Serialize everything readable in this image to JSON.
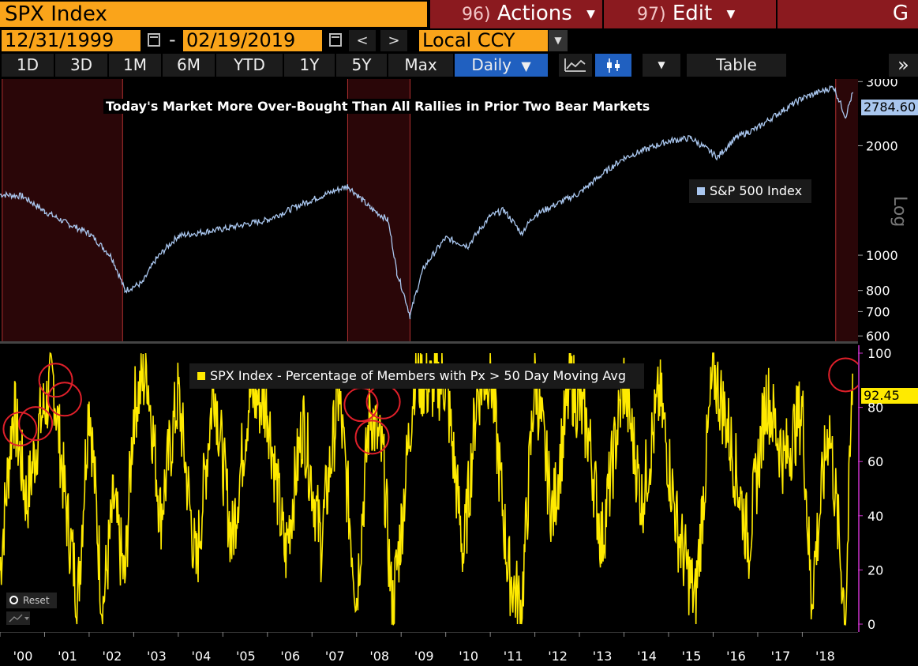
{
  "header": {
    "ticker": "SPX Index",
    "actions_num": "96)",
    "actions_label": "Actions",
    "edit_num": "97)",
    "edit_label": "Edit",
    "g_label": "G"
  },
  "range": {
    "start_date": "12/31/1999",
    "dash": "-",
    "end_date": "02/19/2019",
    "prev": "<",
    "next": ">",
    "currency": "Local CCY"
  },
  "tabs": [
    "1D",
    "3D",
    "1M",
    "6M",
    "YTD",
    "1Y",
    "5Y",
    "Max"
  ],
  "period": "Daily",
  "table_label": "Table",
  "more_label": "»",
  "upper_chart": {
    "title": "Today's Market More Over-Bought Than All Rallies in Prior Two Bear Markets",
    "legend": "S&P 500 Index",
    "last_value": "2784.60",
    "scale_label": "Log",
    "y_ticks": [
      "3000",
      "2000",
      "1000",
      "800",
      "700",
      "600"
    ]
  },
  "lower_chart": {
    "legend": "SPX Index - Percentage of Members with Px > 50 Day Moving Avg",
    "last_value": "92.45",
    "y_ticks": [
      "100",
      "80",
      "60",
      "40",
      "20",
      "0"
    ]
  },
  "x_ticks": [
    "'00",
    "'01",
    "'02",
    "'03",
    "'04",
    "'05",
    "'06",
    "'07",
    "'08",
    "'09",
    "'10",
    "'11",
    "'12",
    "'13",
    "'14",
    "'15",
    "'16",
    "'17",
    "'18"
  ],
  "reset_label": "Reset",
  "colors": {
    "orange": "#faa41a",
    "red_button": "#8b1a1f",
    "spx_line": "#a9c6ee",
    "breadth_line": "#ffea00",
    "circle": "#e0202a",
    "bear_shade": "#2a0608",
    "axis_magenta": "#cc33cc",
    "active_tab": "#2060c0"
  },
  "chart_data": [
    {
      "type": "line",
      "title": "Today's Market More Over-Bought Than All Rallies in Prior Two Bear Markets",
      "scale": "log",
      "ylim": [
        600,
        3000
      ],
      "series": [
        {
          "name": "S&P 500 Index",
          "x": [
            2000.0,
            2000.5,
            2001.0,
            2001.5,
            2002.0,
            2002.5,
            2002.8,
            2003.2,
            2003.5,
            2004.0,
            2005.0,
            2006.0,
            2007.0,
            2007.8,
            2008.3,
            2008.7,
            2008.9,
            2009.2,
            2009.5,
            2010.0,
            2010.5,
            2011.0,
            2011.3,
            2011.7,
            2012.0,
            2013.0,
            2014.0,
            2015.0,
            2015.5,
            2016.1,
            2016.5,
            2017.0,
            2018.0,
            2018.7,
            2018.97,
            2019.13
          ],
          "values": [
            1469,
            1454,
            1320,
            1224,
            1148,
            990,
            800,
            840,
            975,
            1130,
            1180,
            1250,
            1420,
            1550,
            1350,
            1250,
            900,
            680,
            920,
            1115,
            1060,
            1280,
            1330,
            1150,
            1290,
            1480,
            1850,
            2060,
            2100,
            1860,
            2100,
            2240,
            2700,
            2900,
            2400,
            2784.6
          ]
        }
      ]
    },
    {
      "type": "line",
      "ylim": [
        0,
        100
      ],
      "series": [
        {
          "name": "SPX Index - Percentage of Members with Px > 50 Day Moving Avg",
          "x": [
            2000.0,
            2000.3,
            2000.6,
            2000.9,
            2001.2,
            2001.5,
            2001.75,
            2002.0,
            2002.3,
            2002.55,
            2002.8,
            2003.0,
            2003.3,
            2003.6,
            2004.0,
            2004.4,
            2004.8,
            2005.2,
            2005.6,
            2006.0,
            2006.4,
            2006.8,
            2007.2,
            2007.6,
            2008.0,
            2008.3,
            2008.6,
            2008.8,
            2009.0,
            2009.3,
            2009.6,
            2010.0,
            2010.4,
            2010.7,
            2011.0,
            2011.4,
            2011.7,
            2012.0,
            2012.4,
            2012.8,
            2013.2,
            2013.5,
            2014.0,
            2014.4,
            2014.8,
            2015.2,
            2015.6,
            2016.0,
            2016.3,
            2016.8,
            2017.2,
            2017.6,
            2018.0,
            2018.2,
            2018.6,
            2018.97,
            2019.13
          ],
          "values": [
            20,
            80,
            45,
            75,
            90,
            40,
            10,
            85,
            5,
            45,
            15,
            80,
            94,
            40,
            85,
            20,
            90,
            30,
            85,
            80,
            25,
            75,
            30,
            85,
            10,
            80,
            60,
            5,
            35,
            92,
            88,
            90,
            25,
            85,
            95,
            20,
            5,
            92,
            40,
            90,
            70,
            30,
            90,
            45,
            85,
            35,
            8,
            94,
            75,
            30,
            85,
            60,
            80,
            10,
            75,
            2,
            92.45
          ]
        }
      ]
    }
  ]
}
